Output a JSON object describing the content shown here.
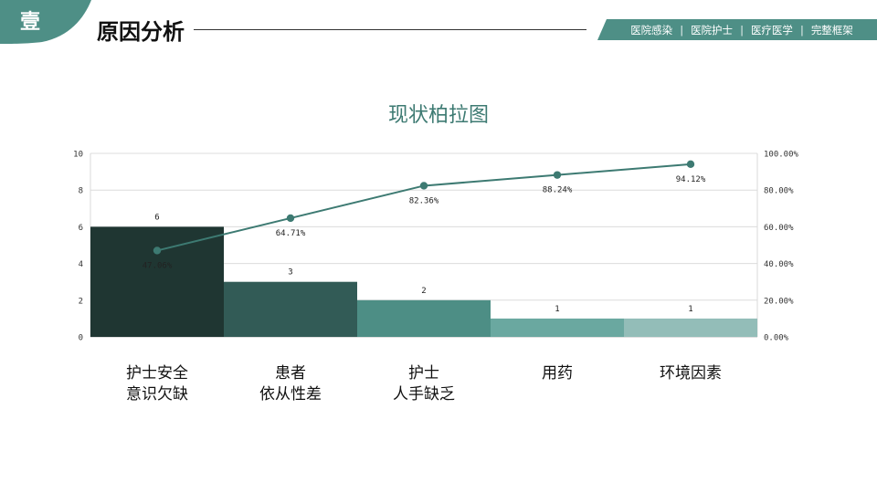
{
  "header": {
    "corner_label": "壹",
    "title": "原因分析",
    "tags": [
      "医院感染",
      "医院护士",
      "医疗医学",
      "完整框架"
    ],
    "separator": "|"
  },
  "colors": {
    "accent": "#4e8f86",
    "line": "#3d7a72",
    "bars": [
      "#1f3632",
      "#325b56",
      "#4d8e85",
      "#6aa8a0",
      "#93bdb8"
    ]
  },
  "chart_data": {
    "type": "bar",
    "title": "现状柏拉图",
    "categories": [
      "护士安全\n意识欠缺",
      "患者\n依从性差",
      "护士\n人手缺乏",
      "用药",
      "环境因素"
    ],
    "series": [
      {
        "values": [
          6,
          3,
          2,
          1,
          1
        ]
      },
      {
        "values": [
          47.06,
          64.71,
          82.36,
          88.24,
          94.12
        ]
      }
    ],
    "bar_labels": [
      "6",
      "3",
      "2",
      "1",
      "1"
    ],
    "line_labels": [
      "47.06%",
      "64.71%",
      "82.36%",
      "88.24%",
      "94.12%"
    ],
    "ylim": [
      0,
      10
    ],
    "y_ticks": [
      "0",
      "2",
      "4",
      "6",
      "8",
      "10"
    ],
    "y2lim": [
      0,
      100
    ],
    "y2_ticks": [
      "0.00%",
      "20.00%",
      "40.00%",
      "60.00%",
      "80.00%",
      "100.00%"
    ],
    "grid": true
  }
}
